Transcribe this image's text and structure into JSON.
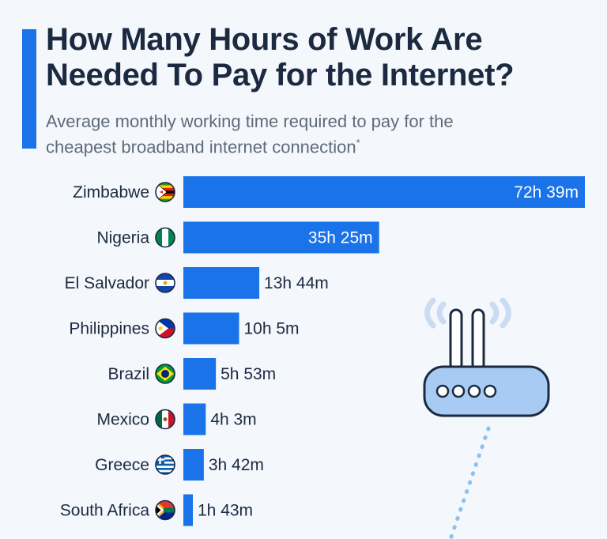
{
  "header": {
    "title": "How Many Hours of Work Are Needed To Pay for the Internet?",
    "subtitle": "Average monthly working time required to pay for the cheapest broadband internet connection",
    "subtitle_mark": "*"
  },
  "colors": {
    "accent": "#1a73e8",
    "text": "#1b2a41",
    "subtle": "#5f6b7a",
    "background": "#f4f7fb",
    "router": "#a8cbf3"
  },
  "icons": [
    "flag-zimbabwe-icon",
    "flag-nigeria-icon",
    "flag-el-salvador-icon",
    "flag-philippines-icon",
    "flag-brazil-icon",
    "flag-mexico-icon",
    "flag-greece-icon",
    "flag-south-africa-icon",
    "wifi-router-icon"
  ],
  "chart_data": {
    "type": "bar",
    "orientation": "horizontal",
    "categories": [
      "Zimbabwe",
      "Nigeria",
      "El Salvador",
      "Philippines",
      "Brazil",
      "Mexico",
      "Greece",
      "South Africa"
    ],
    "values": [
      72.65,
      35.4167,
      13.7333,
      10.0833,
      5.8833,
      4.05,
      3.7,
      1.7167
    ],
    "value_labels": [
      "72h 39m",
      "35h 25m",
      "13h 44m",
      "10h 5m",
      "5h 53m",
      "4h 3m",
      "3h 42m",
      "1h 43m"
    ],
    "unit": "hours",
    "xlim": [
      0,
      72.65
    ],
    "grid": false,
    "legend": "none"
  }
}
